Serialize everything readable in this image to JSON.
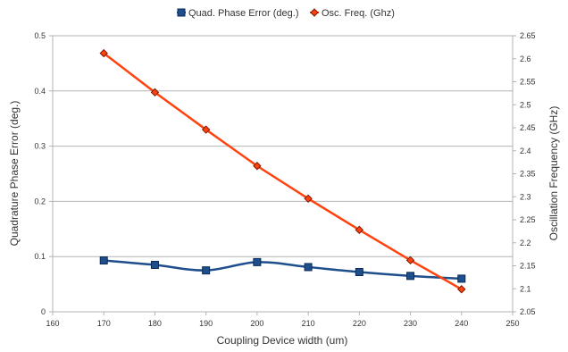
{
  "chart_data": {
    "type": "line",
    "x": [
      170,
      180,
      190,
      200,
      210,
      220,
      230,
      240
    ],
    "xlabel": "Coupling Device width (um)",
    "ylabel": "Quadrature Phase Error (deg.)",
    "y2label": "Oscillation Frequency (GHz)",
    "xlim": [
      160,
      250
    ],
    "ylim": [
      0,
      0.5
    ],
    "y2lim": [
      2.05,
      2.65
    ],
    "x_ticks": [
      "160",
      "170",
      "180",
      "190",
      "200",
      "210",
      "220",
      "230",
      "240",
      "250"
    ],
    "y_ticks": [
      "0",
      "0.1",
      "0.2",
      "0.3",
      "0.4",
      "0.5"
    ],
    "y2_ticks": [
      "2.05",
      "2.1",
      "2.15",
      "2.2",
      "2.25",
      "2.3",
      "2.35",
      "2.4",
      "2.45",
      "2.5",
      "2.55",
      "2.6",
      "2.65"
    ],
    "grid": "horizontal",
    "legend_position": "top",
    "series": [
      {
        "name": "Quad. Phase Error (deg.)",
        "axis": "left",
        "marker": "square",
        "color": "#1f4e8c",
        "smooth": true,
        "values": [
          0.093,
          0.085,
          0.075,
          0.09,
          0.081,
          0.072,
          0.065,
          0.06
        ]
      },
      {
        "name": "Osc. Freq. (Ghz)",
        "axis": "right",
        "marker": "diamond",
        "color": "#ff420e",
        "smooth": false,
        "values": [
          2.612,
          2.527,
          2.446,
          2.367,
          2.296,
          2.228,
          2.162,
          2.099
        ]
      }
    ]
  }
}
